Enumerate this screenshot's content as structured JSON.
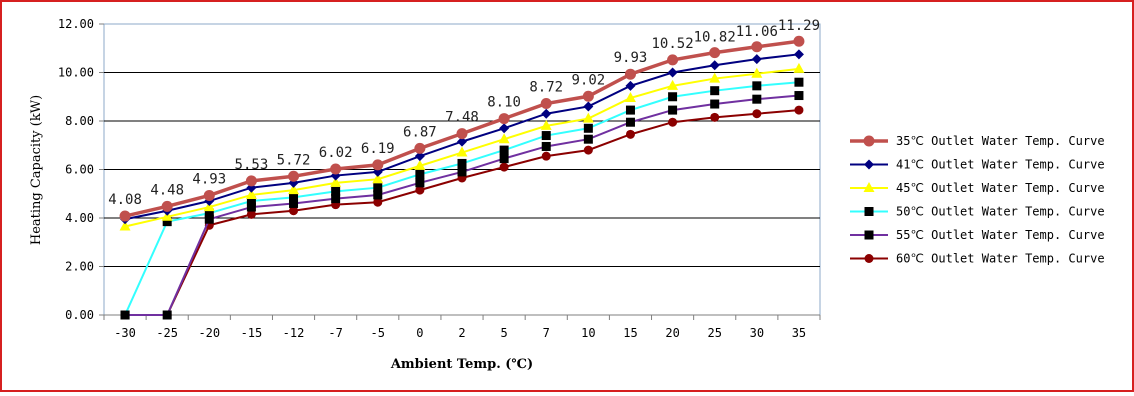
{
  "chart_data": {
    "type": "line",
    "title": "",
    "xlabel": "Ambient Temp. (℃)",
    "ylabel": "Heating Capacity (kW)",
    "categories": [
      "-30",
      "-25",
      "-20",
      "-15",
      "-12",
      "-7",
      "-5",
      "0",
      "2",
      "5",
      "7",
      "10",
      "15",
      "20",
      "25",
      "30",
      "35"
    ],
    "ylim": [
      0,
      12
    ],
    "yticks": [
      "0.00",
      "2.00",
      "4.00",
      "6.00",
      "8.00",
      "10.00",
      "12.00"
    ],
    "grid": "horizontal",
    "legend_position": "right",
    "series": [
      {
        "name": "35℃ Outlet Water Temp. Curve",
        "color": "#c0504d",
        "marker": "circle-large",
        "values": [
          4.08,
          4.48,
          4.93,
          5.53,
          5.72,
          6.02,
          6.19,
          6.87,
          7.48,
          8.1,
          8.72,
          9.02,
          9.93,
          10.52,
          10.82,
          11.06,
          11.29
        ],
        "labels": [
          "4.08",
          "4.48",
          "4.93",
          "5.53",
          "5.72",
          "6.02",
          "6.19",
          "6.87",
          "7.48",
          "8.10",
          "8.72",
          "9.02",
          "9.93",
          "10.52",
          "10.82",
          "11.06",
          "11.29"
        ]
      },
      {
        "name": "41℃ Outlet Water Temp. Curve",
        "color": "#000080",
        "marker": "diamond",
        "values": [
          3.95,
          4.3,
          4.7,
          5.25,
          5.45,
          5.75,
          5.9,
          6.55,
          7.15,
          7.7,
          8.3,
          8.6,
          9.45,
          10.0,
          10.3,
          10.55,
          10.75
        ]
      },
      {
        "name": "45℃ Outlet Water Temp. Curve",
        "color": "#ffff00",
        "marker": "triangle",
        "values": [
          3.65,
          4.05,
          4.45,
          4.95,
          5.15,
          5.45,
          5.6,
          6.15,
          6.7,
          7.25,
          7.8,
          8.1,
          8.95,
          9.45,
          9.75,
          9.95,
          10.15
        ]
      },
      {
        "name": "50℃ Outlet Water Temp. Curve",
        "color": "#33ffff",
        "marker": "square",
        "values": [
          0,
          3.85,
          4.2,
          4.7,
          4.85,
          5.1,
          5.25,
          5.8,
          6.25,
          6.8,
          7.4,
          7.7,
          8.45,
          9.0,
          9.25,
          9.45,
          9.6
        ]
      },
      {
        "name": "55℃ Outlet Water Temp. Curve",
        "color": "#7030a0",
        "marker": "square",
        "values": [
          0,
          0,
          3.95,
          4.45,
          4.6,
          4.8,
          4.95,
          5.45,
          5.9,
          6.45,
          6.95,
          7.25,
          7.95,
          8.45,
          8.7,
          8.9,
          9.05
        ]
      },
      {
        "name": "60℃ Outlet Water Temp. Curve",
        "color": "#8b0000",
        "marker": "circle",
        "values": [
          0,
          0,
          3.7,
          4.15,
          4.3,
          4.55,
          4.65,
          5.15,
          5.65,
          6.1,
          6.55,
          6.8,
          7.45,
          7.95,
          8.15,
          8.3,
          8.45
        ]
      }
    ]
  }
}
